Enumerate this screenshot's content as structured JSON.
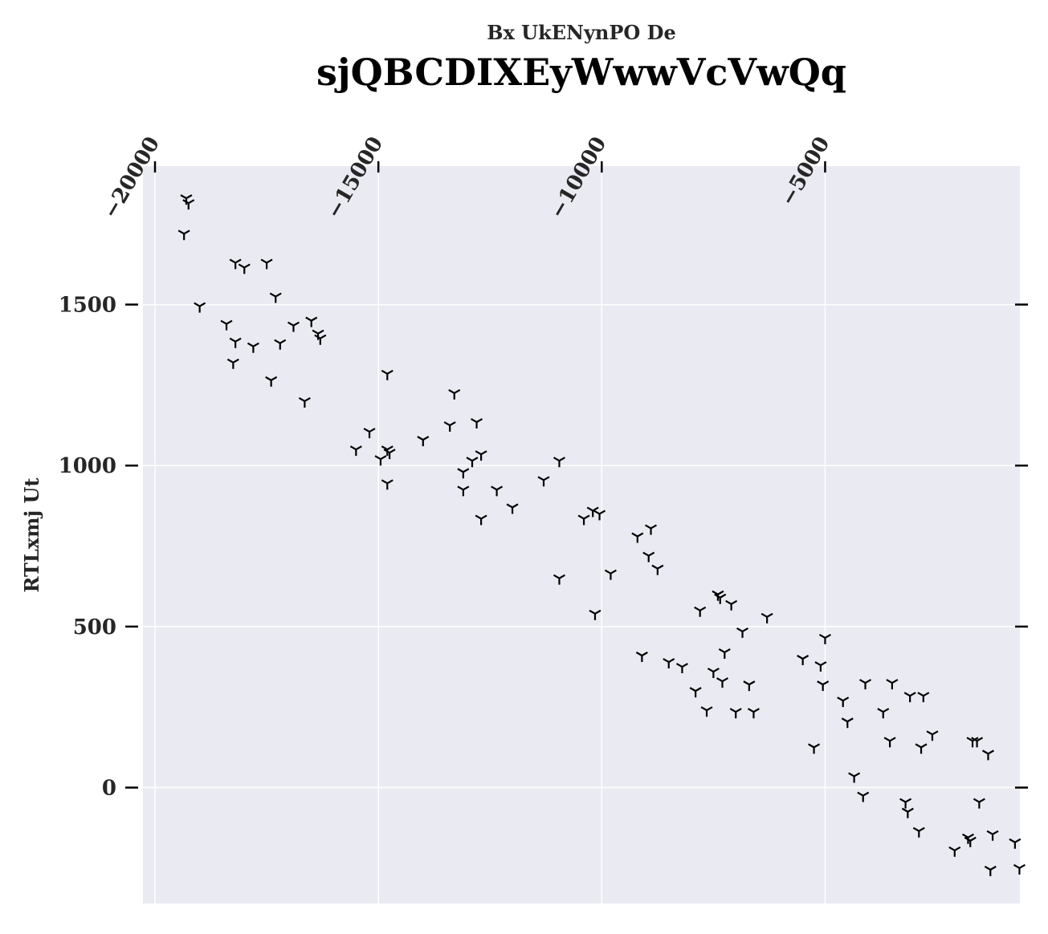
{
  "chart_data": {
    "type": "scatter",
    "subtitle": "Bx UkENynPO De",
    "title": "sjQBCDIXEyWwwVcVwQq",
    "ylabel": "RTLxmj Ut",
    "xlabel": "",
    "x_axis_position": "top",
    "grid": true,
    "xlim": [
      -20270,
      -640
    ],
    "ylim": [
      -360,
      1930
    ],
    "x_ticks": [
      -20000,
      -15000,
      -10000,
      -5000
    ],
    "y_ticks": [
      0,
      500,
      1000,
      1500
    ],
    "marker": "tri_down",
    "colors": {
      "background": "#eaeaf2",
      "grid": "#ffffff",
      "marker": "#000000",
      "text": "#262626"
    },
    "points": [
      [
        -19300,
        1830
      ],
      [
        -19250,
        1815
      ],
      [
        -19350,
        1720
      ],
      [
        -19000,
        1495
      ],
      [
        -18200,
        1630
      ],
      [
        -18000,
        1615
      ],
      [
        -17500,
        1630
      ],
      [
        -17300,
        1525
      ],
      [
        -18400,
        1440
      ],
      [
        -18200,
        1385
      ],
      [
        -17800,
        1370
      ],
      [
        -17200,
        1380
      ],
      [
        -18250,
        1320
      ],
      [
        -17400,
        1265
      ],
      [
        -16900,
        1435
      ],
      [
        -16500,
        1450
      ],
      [
        -16350,
        1410
      ],
      [
        -16300,
        1395
      ],
      [
        -16650,
        1200
      ],
      [
        -14800,
        1285
      ],
      [
        -15200,
        1105
      ],
      [
        -15500,
        1050
      ],
      [
        -14950,
        1020
      ],
      [
        -14800,
        1050
      ],
      [
        -14750,
        1040
      ],
      [
        -14800,
        945
      ],
      [
        -14000,
        1080
      ],
      [
        -13400,
        1125
      ],
      [
        -13300,
        1225
      ],
      [
        -12800,
        1135
      ],
      [
        -12900,
        1015
      ],
      [
        -12700,
        1035
      ],
      [
        -13100,
        980
      ],
      [
        -13100,
        925
      ],
      [
        -12350,
        925
      ],
      [
        -12700,
        835
      ],
      [
        -12000,
        870
      ],
      [
        -11300,
        955
      ],
      [
        -10950,
        1015
      ],
      [
        -10950,
        650
      ],
      [
        -10400,
        835
      ],
      [
        -10200,
        860
      ],
      [
        -10050,
        850
      ],
      [
        -9800,
        665
      ],
      [
        -10150,
        540
      ],
      [
        -9200,
        780
      ],
      [
        -8900,
        805
      ],
      [
        -8950,
        720
      ],
      [
        -8750,
        680
      ],
      [
        -9100,
        410
      ],
      [
        -8500,
        390
      ],
      [
        -8200,
        375
      ],
      [
        -7800,
        550
      ],
      [
        -7400,
        600
      ],
      [
        -7350,
        590
      ],
      [
        -7100,
        570
      ],
      [
        -6850,
        485
      ],
      [
        -6300,
        530
      ],
      [
        -7250,
        420
      ],
      [
        -7500,
        360
      ],
      [
        -7300,
        330
      ],
      [
        -6700,
        320
      ],
      [
        -7900,
        300
      ],
      [
        -7650,
        240
      ],
      [
        -7000,
        235
      ],
      [
        -6600,
        235
      ],
      [
        -5500,
        400
      ],
      [
        -5100,
        380
      ],
      [
        -5000,
        465
      ],
      [
        -5050,
        320
      ],
      [
        -5250,
        125
      ],
      [
        -4600,
        270
      ],
      [
        -4500,
        205
      ],
      [
        -4100,
        325
      ],
      [
        -3700,
        235
      ],
      [
        -3500,
        325
      ],
      [
        -3550,
        145
      ],
      [
        -3100,
        285
      ],
      [
        -2800,
        285
      ],
      [
        -2850,
        125
      ],
      [
        -2600,
        165
      ],
      [
        -4350,
        35
      ],
      [
        -4150,
        -25
      ],
      [
        -3200,
        -45
      ],
      [
        -3150,
        -75
      ],
      [
        -2900,
        -135
      ],
      [
        -1700,
        145
      ],
      [
        -1600,
        145
      ],
      [
        -1350,
        105
      ],
      [
        -1550,
        -45
      ],
      [
        -1250,
        -145
      ],
      [
        -1800,
        -155
      ],
      [
        -1750,
        -165
      ],
      [
        -2100,
        -195
      ],
      [
        -1300,
        -255
      ],
      [
        -750,
        -170
      ],
      [
        -650,
        -250
      ]
    ]
  }
}
